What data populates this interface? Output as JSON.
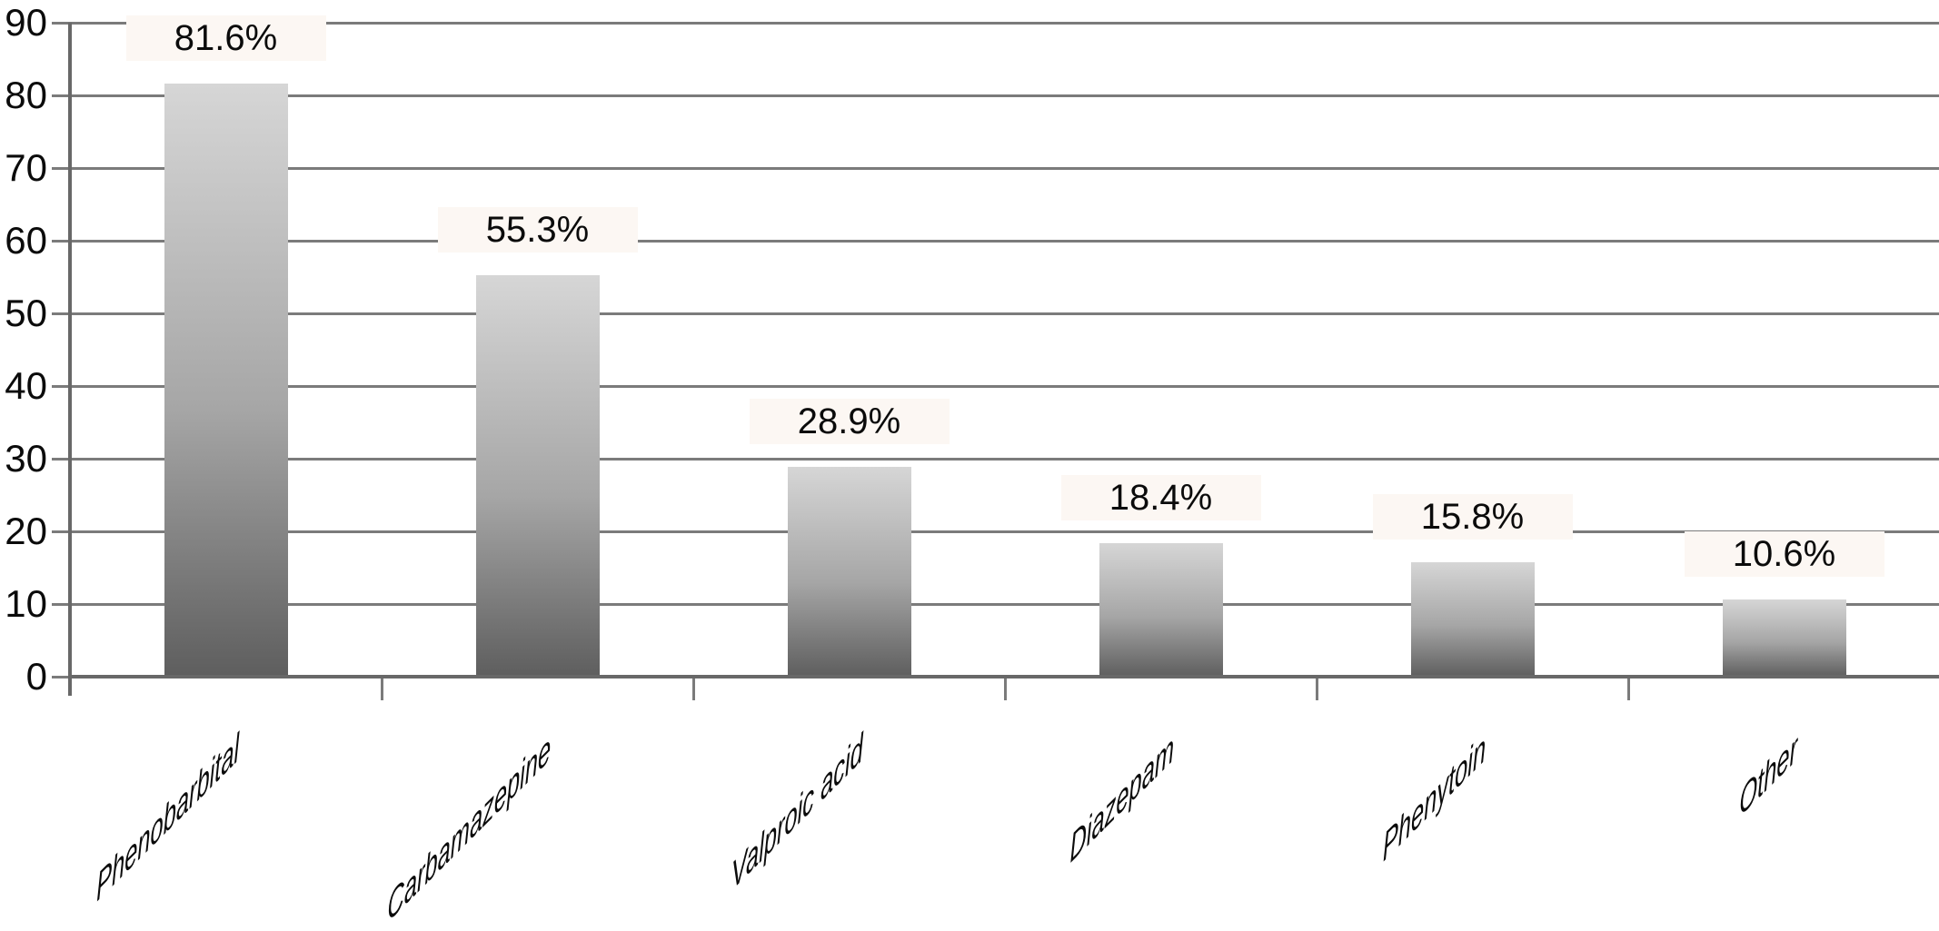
{
  "chart_data": {
    "type": "bar",
    "title": "",
    "xlabel": "",
    "ylabel": "",
    "categories": [
      "Phenobarbital",
      "Carbamazepine",
      "Valproic acid",
      "Diazepam",
      "Phenytoin",
      "Other"
    ],
    "values": [
      81.6,
      55.3,
      28.9,
      18.4,
      15.8,
      10.6
    ],
    "value_labels": [
      "81.6%",
      "55.3%",
      "28.9%",
      "18.4%",
      "15.8%",
      "10.6%"
    ],
    "yticks": [
      0,
      10,
      20,
      30,
      40,
      50,
      60,
      70,
      80,
      90
    ],
    "ylim": [
      0,
      90
    ],
    "grid": "horizontal",
    "legend": "none",
    "colors": {
      "bar_gradient_top": "#d6d6d6",
      "bar_gradient_mid": "#a6a6a6",
      "bar_gradient_bottom": "#5e5e5e",
      "grid_line": "#7b7b7b",
      "axis_line": "#686868",
      "text": "#0b0b0b",
      "value_label_background": "#fcf7f3",
      "background": "#ffffff"
    }
  }
}
